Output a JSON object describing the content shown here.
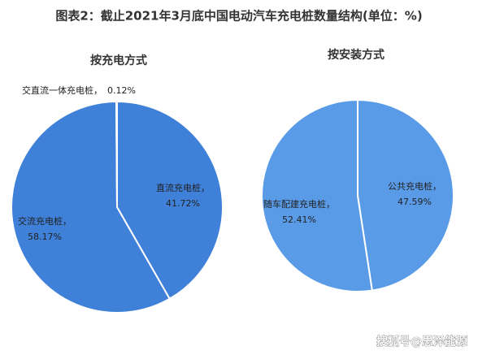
{
  "title": "图表2：截止2021年3月底中国电动汽车充电桩数量结构(单位：%)",
  "watermark": "搜狐号@思泽能源",
  "chart_data": [
    {
      "type": "pie",
      "title": "按充电方式",
      "categories": [
        "直流充电桩，",
        "交流充电桩，",
        "交直流一体充电桩，"
      ],
      "values": [
        41.72,
        58.17,
        0.12
      ],
      "value_labels": [
        "41.72%",
        "58.17%",
        "0.12%"
      ],
      "color": "#3f80d9"
    },
    {
      "type": "pie",
      "title": "按安装方式",
      "categories": [
        "公共充电桩，",
        "随车配建充电桩，"
      ],
      "values": [
        47.59,
        52.41
      ],
      "value_labels": [
        "47.59%",
        "52.41%"
      ],
      "color": "#5a9be8"
    }
  ]
}
